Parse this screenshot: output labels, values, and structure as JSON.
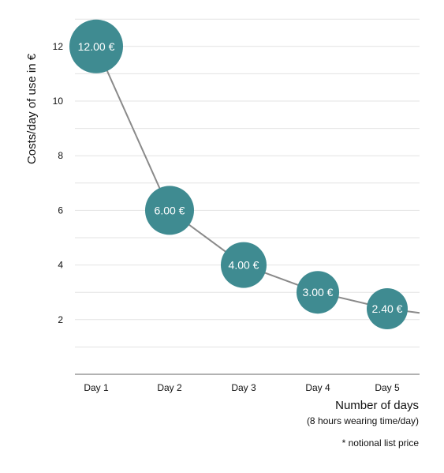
{
  "chart_data": {
    "type": "line",
    "categories": [
      "Day 1",
      "Day 2",
      "Day 3",
      "Day 4",
      "Day 5"
    ],
    "values": [
      12.0,
      6.0,
      4.0,
      3.0,
      2.4
    ],
    "data_labels": [
      "12.00 €",
      "6.00 €",
      "4.00 €",
      "3.00 €",
      "2.40 €"
    ],
    "yticks": [
      2,
      4,
      6,
      8,
      10,
      12
    ],
    "ylim": [
      0,
      13
    ],
    "ylabel": "Costs/day of use in €",
    "xlabel": "Number of days",
    "xlabel_sub": "(8 hours wearing time/day)",
    "footnote": "* notional list price",
    "grid": true,
    "colors": {
      "marker": "#3f8b91",
      "line": "#8a8a8a",
      "grid": "#e3e3e3",
      "axis": "#999999"
    }
  }
}
